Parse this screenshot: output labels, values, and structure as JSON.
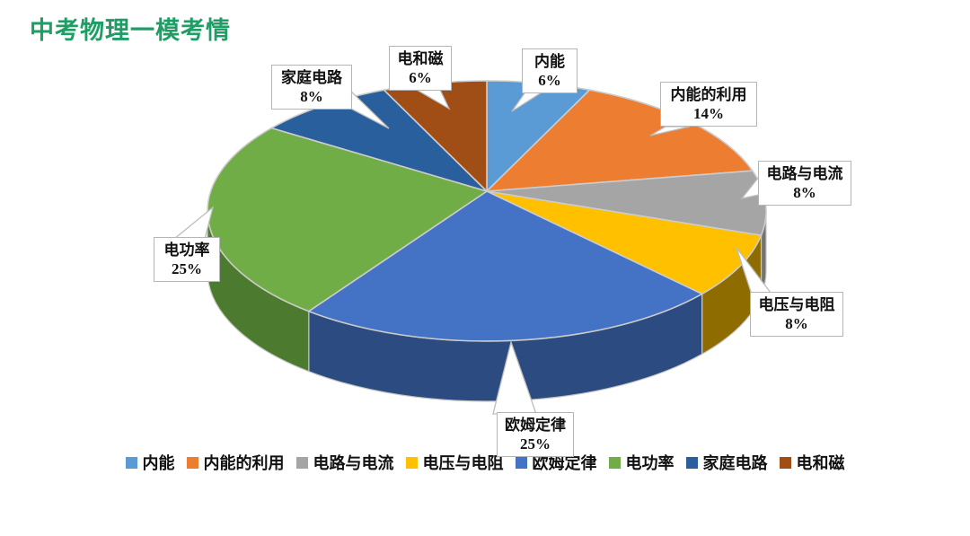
{
  "title": {
    "text": "中考物理一模考情",
    "color": "#1E9E64"
  },
  "chart_data": {
    "type": "pie",
    "style": "3d-exploded-depth",
    "title": "中考物理一模考情",
    "categories": [
      "内能",
      "内能的利用",
      "电路与电流",
      "电压与电阻",
      "欧姆定律",
      "电功率",
      "家庭电路",
      "电和磁"
    ],
    "values": [
      6,
      14,
      8,
      8,
      25,
      25,
      8,
      6
    ],
    "unit": "%",
    "colors": [
      "#5B9BD5",
      "#ED7D31",
      "#A5A5A5",
      "#FFC000",
      "#4472C4",
      "#70AD47",
      "#2A5F9E",
      "#A04E15"
    ],
    "wall_colors": [
      null,
      null,
      "#737373",
      "#8E6C00",
      "#2C4B80",
      "#4C7A2F",
      null,
      null
    ],
    "data_labels": [
      "内能 6%",
      "内能的利用 14%",
      "电路与电流 8%",
      "电压与电阻 8%",
      "欧姆定律 25%",
      "电功率 25%",
      "家庭电路 8%",
      "电和磁 6%"
    ],
    "start_angle_deg": 0,
    "direction": "clockwise",
    "legend_position": "bottom",
    "leader_line_color": "#bdbdbd",
    "slice_border_color": "#cccccc"
  }
}
